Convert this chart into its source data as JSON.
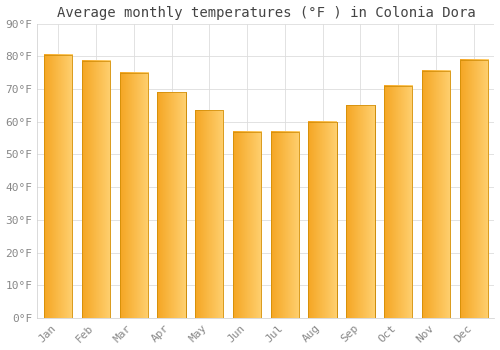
{
  "title": "Average monthly temperatures (°F ) in Colonia Dora",
  "months": [
    "Jan",
    "Feb",
    "Mar",
    "Apr",
    "May",
    "Jun",
    "Jul",
    "Aug",
    "Sep",
    "Oct",
    "Nov",
    "Dec"
  ],
  "values": [
    80.5,
    78.5,
    75,
    69,
    63.5,
    57,
    57,
    60,
    65,
    71,
    75.5,
    79
  ],
  "bar_color_left": "#F5A623",
  "bar_color_right": "#FFD070",
  "bar_edge_color": "#CC8800",
  "ylim": [
    0,
    90
  ],
  "yticks": [
    0,
    10,
    20,
    30,
    40,
    50,
    60,
    70,
    80,
    90
  ],
  "ytick_labels": [
    "0°F",
    "10°F",
    "20°F",
    "30°F",
    "40°F",
    "50°F",
    "60°F",
    "70°F",
    "80°F",
    "90°F"
  ],
  "background_color": "#FFFFFF",
  "grid_color": "#DDDDDD",
  "title_fontsize": 10,
  "tick_fontsize": 8,
  "title_font_color": "#444444",
  "tick_font_color": "#888888"
}
